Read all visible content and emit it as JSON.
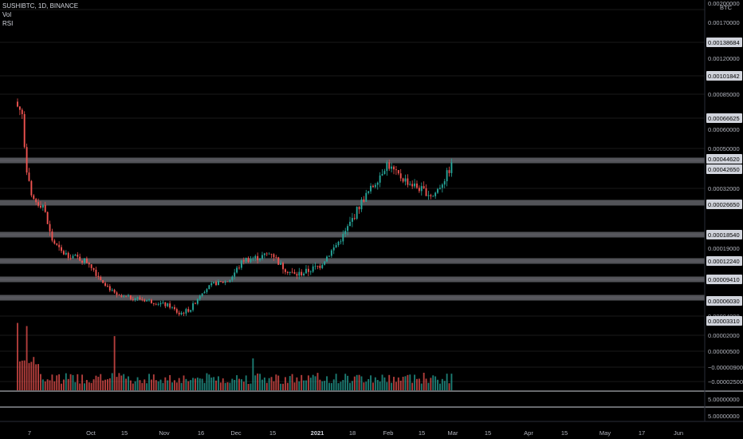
{
  "header": {
    "symbol_line": "SUSHIBTC, 1D, BINANCE",
    "vol_label": "Vol",
    "rsi_label": "RSI"
  },
  "axis": {
    "currency": "BTC",
    "price_ticks": [
      "0.00200000",
      "0.00170000",
      "0.00120000",
      "0.00085000",
      "0.00060000",
      "0.00050000",
      "0.00032000",
      "0.00019000",
      "0.00004000",
      "0.00002000",
      "0.00000500",
      "−0.00000900",
      "−0.00002500"
    ],
    "pane_ticks": [
      "5.00000000",
      "5.00000000"
    ],
    "tags": [
      "0.00138684",
      "0.00101842",
      "0.00066625",
      "0.00044620",
      "0.00042650",
      "0.00026650",
      "0.00018540",
      "0.00012240",
      "0.00009410",
      "0.00006030",
      "0.00003310"
    ],
    "tag_colors": [
      "#d1d4dc",
      "#d1d4dc",
      "#d1d4dc",
      "#d1d4dc",
      "#d1d4dc",
      "#d1d4dc",
      "#d1d4dc",
      "#d1d4dc",
      "#d1d4dc",
      "#d1d4dc",
      "#d1d4dc"
    ],
    "x_labels": [
      "7",
      "Oct",
      "15",
      "Nov",
      "16",
      "Dec",
      "15",
      "2021",
      "18",
      "Feb",
      "15",
      "Mar",
      "15",
      "Apr",
      "15",
      "May",
      "17",
      "Jun"
    ]
  },
  "colors": {
    "up": "#26a69a",
    "down": "#ef5350",
    "level": "#9598a1",
    "background": "#000000"
  },
  "chart_data": {
    "type": "candlestick",
    "symbol": "SUSHIBTC",
    "timeframe": "1D",
    "exchange": "BINANCE",
    "scale": "log",
    "ylim": [
      2e-05,
      0.002
    ],
    "x_range": [
      "2020-08-28",
      "2021-06-12"
    ],
    "price_points": [
      [
        "2020-08-28",
        0.00075
      ],
      [
        "2020-08-30",
        0.0007
      ],
      [
        "2020-09-01",
        0.0004
      ],
      [
        "2020-09-03",
        0.00028
      ],
      [
        "2020-09-05",
        0.00027
      ],
      [
        "2020-09-08",
        0.00026
      ],
      [
        "2020-09-12",
        0.00017
      ],
      [
        "2020-09-16",
        0.00014
      ],
      [
        "2020-09-22",
        0.00013
      ],
      [
        "2020-09-28",
        0.00012
      ],
      [
        "2020-10-04",
        9e-05
      ],
      [
        "2020-10-10",
        6.2e-05
      ],
      [
        "2020-10-18",
        6e-05
      ],
      [
        "2020-10-26",
        5.5e-05
      ],
      [
        "2020-11-02",
        5e-05
      ],
      [
        "2020-11-06",
        4.2e-05
      ],
      [
        "2020-11-11",
        4.7e-05
      ],
      [
        "2020-11-16",
        7e-05
      ],
      [
        "2020-11-21",
        8.5e-05
      ],
      [
        "2020-11-27",
        9e-05
      ],
      [
        "2020-12-04",
        0.000125
      ],
      [
        "2020-12-11",
        0.00013
      ],
      [
        "2020-12-16",
        0.00014
      ],
      [
        "2020-12-20",
        0.000115
      ],
      [
        "2020-12-26",
        0.0001
      ],
      [
        "2020-12-31",
        0.000105
      ],
      [
        "2021-01-06",
        0.000115
      ],
      [
        "2021-01-12",
        0.00015
      ],
      [
        "2021-01-18",
        0.0002
      ],
      [
        "2021-01-24",
        0.00027
      ],
      [
        "2021-01-29",
        0.00033
      ],
      [
        "2021-02-04",
        0.00043
      ],
      [
        "2021-02-08",
        0.00038
      ],
      [
        "2021-02-14",
        0.00034
      ],
      [
        "2021-02-20",
        0.00031
      ],
      [
        "2021-02-24",
        0.00029
      ],
      [
        "2021-03-01",
        0.00036
      ],
      [
        "2021-03-04",
        0.00042
      ]
    ],
    "horizontal_levels": [
      0.0004462,
      0.0002665,
      0.0001854,
      0.0001224,
      9.41e-05,
      6.03e-05
    ],
    "volume_peaks": [
      [
        "2020-08-28",
        "high"
      ],
      [
        "2020-09-01",
        "high"
      ],
      [
        "2020-10-09",
        "high"
      ],
      [
        "2020-12-08",
        "medium"
      ],
      [
        "2021-02-20",
        "low"
      ]
    ],
    "panes": [
      "price",
      "volume",
      "rsi"
    ]
  }
}
